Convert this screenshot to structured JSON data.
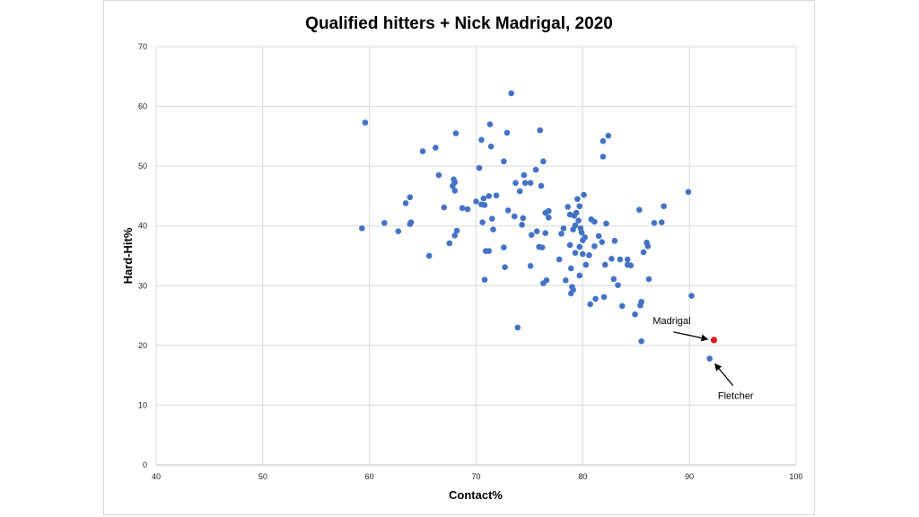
{
  "chart_data": {
    "type": "scatter",
    "title": "Qualified hitters + Nick Madrigal, 2020",
    "xlabel": "Contact%",
    "ylabel": "Hard-Hit%",
    "xlim": [
      40,
      100
    ],
    "ylim": [
      0,
      70
    ],
    "xticks": [
      "40",
      "50",
      "60",
      "70",
      "80",
      "90",
      "100"
    ],
    "yticks": [
      "0",
      "10",
      "20",
      "30",
      "40",
      "50",
      "60",
      "70"
    ],
    "grid": true,
    "colors": {
      "series": "#4472c4",
      "highlight": "#e01b1b"
    },
    "series": [
      {
        "values": [
          [
            59.6,
            57.3
          ],
          [
            59.3,
            39.6
          ],
          [
            61.4,
            40.5
          ],
          [
            62.7,
            39.1
          ],
          [
            63.4,
            43.8
          ],
          [
            63.8,
            44.8
          ],
          [
            63.8,
            40.3
          ],
          [
            63.9,
            40.6
          ],
          [
            65.0,
            52.5
          ],
          [
            65.6,
            35.0
          ],
          [
            66.2,
            53.1
          ],
          [
            66.5,
            48.5
          ],
          [
            67.0,
            43.1
          ],
          [
            67.5,
            37.1
          ],
          [
            67.8,
            46.7
          ],
          [
            67.9,
            47.8
          ],
          [
            68.0,
            47.3
          ],
          [
            68.1,
            55.5
          ],
          [
            68.0,
            45.9
          ],
          [
            68.2,
            39.2
          ],
          [
            68.0,
            38.4
          ],
          [
            68.7,
            43.0
          ],
          [
            69.2,
            42.8
          ],
          [
            70.0,
            44.1
          ],
          [
            70.3,
            49.7
          ],
          [
            70.5,
            54.4
          ],
          [
            70.5,
            43.6
          ],
          [
            70.7,
            44.6
          ],
          [
            70.8,
            43.5
          ],
          [
            70.6,
            40.6
          ],
          [
            70.8,
            31.0
          ],
          [
            70.9,
            35.8
          ],
          [
            71.2,
            35.8
          ],
          [
            71.3,
            57.0
          ],
          [
            71.4,
            53.3
          ],
          [
            71.2,
            45.0
          ],
          [
            71.5,
            41.2
          ],
          [
            71.6,
            39.4
          ],
          [
            71.9,
            45.1
          ],
          [
            72.6,
            50.8
          ],
          [
            72.6,
            36.4
          ],
          [
            72.7,
            33.1
          ],
          [
            72.9,
            55.6
          ],
          [
            73.0,
            42.6
          ],
          [
            73.3,
            62.2
          ],
          [
            73.6,
            41.6
          ],
          [
            73.7,
            47.2
          ],
          [
            73.9,
            23.0
          ],
          [
            74.1,
            45.8
          ],
          [
            74.4,
            41.3
          ],
          [
            74.3,
            40.2
          ],
          [
            74.5,
            48.5
          ],
          [
            74.6,
            47.2
          ],
          [
            75.1,
            47.2
          ],
          [
            75.1,
            33.3
          ],
          [
            75.2,
            38.5
          ],
          [
            75.6,
            49.4
          ],
          [
            75.9,
            36.5
          ],
          [
            75.7,
            39.1
          ],
          [
            76.0,
            56.0
          ],
          [
            76.1,
            46.7
          ],
          [
            76.2,
            36.4
          ],
          [
            76.3,
            50.8
          ],
          [
            76.3,
            30.4
          ],
          [
            76.5,
            38.8
          ],
          [
            76.5,
            42.2
          ],
          [
            76.6,
            30.9
          ],
          [
            76.8,
            42.5
          ],
          [
            76.8,
            41.4
          ],
          [
            77.8,
            34.4
          ],
          [
            78.0,
            38.7
          ],
          [
            78.2,
            39.6
          ],
          [
            78.4,
            30.9
          ],
          [
            78.6,
            43.2
          ],
          [
            78.8,
            41.9
          ],
          [
            78.8,
            36.8
          ],
          [
            78.9,
            32.9
          ],
          [
            78.9,
            28.7
          ],
          [
            79.0,
            29.8
          ],
          [
            79.1,
            29.3
          ],
          [
            79.1,
            39.4
          ],
          [
            79.2,
            41.7
          ],
          [
            79.3,
            40.1
          ],
          [
            79.3,
            35.5
          ],
          [
            79.4,
            42.2
          ],
          [
            79.5,
            44.5
          ],
          [
            79.6,
            40.9
          ],
          [
            79.7,
            43.3
          ],
          [
            79.7,
            36.5
          ],
          [
            79.7,
            31.7
          ],
          [
            79.8,
            39.6
          ],
          [
            79.9,
            38.9
          ],
          [
            80.0,
            37.6
          ],
          [
            80.0,
            35.3
          ],
          [
            80.1,
            45.2
          ],
          [
            80.2,
            38.1
          ],
          [
            80.3,
            33.5
          ],
          [
            80.6,
            35.1
          ],
          [
            80.7,
            26.9
          ],
          [
            80.8,
            41.1
          ],
          [
            81.1,
            40.7
          ],
          [
            81.1,
            36.6
          ],
          [
            81.2,
            27.8
          ],
          [
            81.5,
            38.3
          ],
          [
            81.8,
            37.3
          ],
          [
            81.9,
            51.6
          ],
          [
            81.9,
            54.2
          ],
          [
            82.0,
            28.1
          ],
          [
            82.1,
            33.5
          ],
          [
            82.2,
            40.4
          ],
          [
            82.4,
            55.1
          ],
          [
            82.7,
            34.5
          ],
          [
            82.9,
            31.1
          ],
          [
            83.0,
            37.5
          ],
          [
            83.3,
            30.1
          ],
          [
            83.5,
            34.4
          ],
          [
            83.7,
            26.6
          ],
          [
            84.2,
            34.4
          ],
          [
            84.2,
            33.5
          ],
          [
            84.5,
            33.4
          ],
          [
            84.9,
            25.2
          ],
          [
            85.3,
            42.7
          ],
          [
            85.4,
            26.7
          ],
          [
            85.5,
            27.3
          ],
          [
            85.5,
            20.7
          ],
          [
            85.7,
            35.6
          ],
          [
            86.0,
            37.2
          ],
          [
            86.1,
            36.6
          ],
          [
            86.2,
            31.1
          ],
          [
            86.7,
            40.5
          ],
          [
            87.4,
            40.6
          ],
          [
            87.6,
            43.3
          ],
          [
            89.9,
            45.7
          ],
          [
            90.2,
            28.3
          ],
          [
            91.9,
            17.8
          ]
        ]
      },
      {
        "name": "Madrigal",
        "values": [
          [
            92.3,
            20.9
          ]
        ]
      }
    ],
    "annotations": [
      {
        "text": "Madrigal",
        "points_to": [
          92.3,
          20.9
        ]
      },
      {
        "text": "Fletcher",
        "points_to": [
          91.9,
          17.8
        ]
      }
    ]
  }
}
